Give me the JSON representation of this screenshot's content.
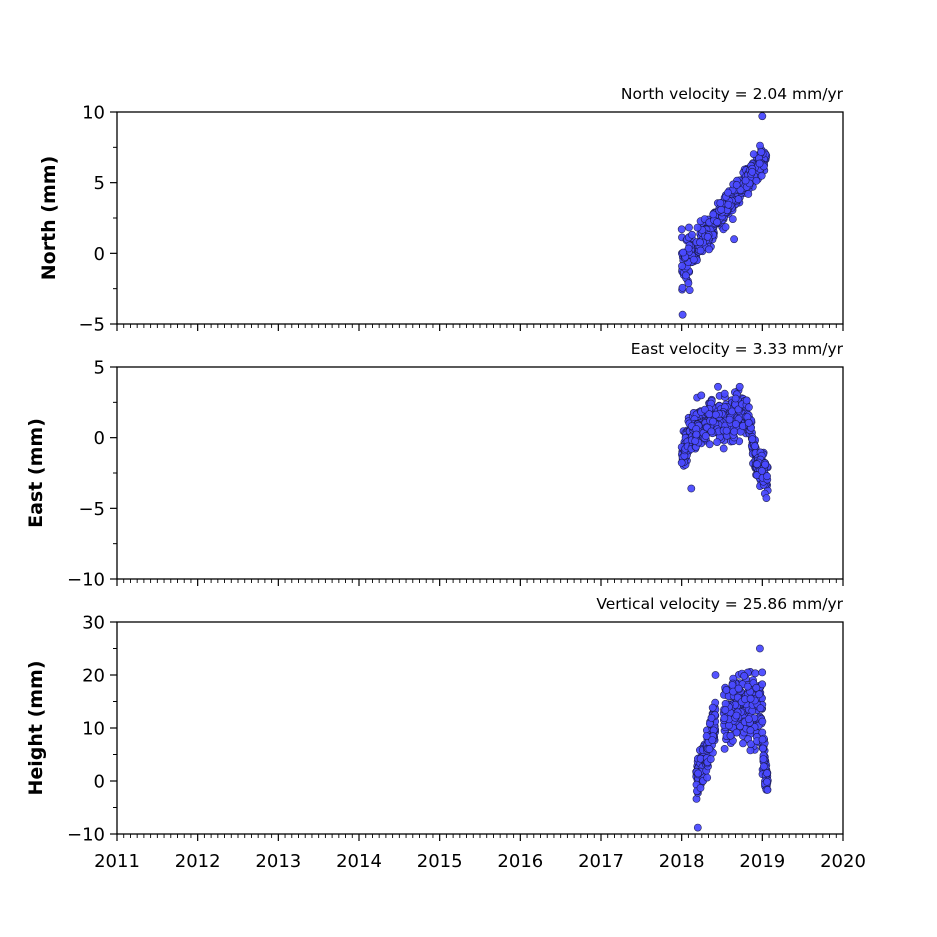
{
  "chart_data": [
    {
      "type": "scatter",
      "velocity_label": "North velocity = 2.04 mm/yr",
      "ylabel": "North (mm)",
      "ylim": [
        -5,
        10
      ],
      "yticks": [
        "−5",
        "0",
        "5",
        "10"
      ],
      "ytick_values": [
        -5,
        0,
        5,
        10
      ],
      "xlim": [
        2011,
        2020
      ],
      "marker_color": "#4a4aff",
      "trend": {
        "x_start": 2018.0,
        "x_end": 2019.05,
        "y_start": -1.0,
        "y_end": 7.0,
        "spread": 1.3,
        "start_spread": 1.6
      },
      "outliers": [
        {
          "x": 2019.0,
          "y": 9.7
        },
        {
          "x": 2018.1,
          "y": -2.6
        },
        {
          "x": 2018.65,
          "y": 1.0
        }
      ]
    },
    {
      "type": "scatter",
      "velocity_label": "East velocity = 3.33 mm/yr",
      "ylabel": "East (mm)",
      "ylim": [
        -10,
        5
      ],
      "yticks": [
        "−10",
        "−5",
        "0",
        "5"
      ],
      "ytick_values": [
        -10,
        -5,
        0,
        5
      ],
      "xlim": [
        2011,
        2020
      ],
      "marker_color": "#4a4aff",
      "segments": [
        {
          "x_start": 2018.0,
          "x_end": 2018.12,
          "y_start": -1.5,
          "y_end": 0.5,
          "spread": 1.2
        },
        {
          "x_start": 2018.12,
          "x_end": 2018.8,
          "y_start": 0.5,
          "y_end": 1.8,
          "spread": 1.3
        },
        {
          "x_start": 2018.8,
          "x_end": 2018.92,
          "y_start": 2.0,
          "y_end": -1.2,
          "spread": 1.0
        },
        {
          "x_start": 2018.92,
          "x_end": 2019.07,
          "y_start": -2.0,
          "y_end": -2.8,
          "spread": 1.1
        }
      ],
      "outliers": [
        {
          "x": 2018.12,
          "y": -3.6
        },
        {
          "x": 2018.72,
          "y": 3.6
        },
        {
          "x": 2018.45,
          "y": 3.6
        }
      ]
    },
    {
      "type": "scatter",
      "velocity_label": "Vertical velocity = 25.86 mm/yr",
      "ylabel": "Height (mm)",
      "ylim": [
        -10,
        30
      ],
      "yticks": [
        "−10",
        "0",
        "10",
        "20",
        "30"
      ],
      "ytick_values": [
        -10,
        0,
        10,
        20,
        30
      ],
      "xlim": [
        2011,
        2020
      ],
      "marker_color": "#4a4aff",
      "segments": [
        {
          "x_start": 2018.18,
          "x_end": 2018.3,
          "y_start": 0.0,
          "y_end": 4.0,
          "spread": 3.5
        },
        {
          "x_start": 2018.3,
          "x_end": 2018.42,
          "y_start": 4.0,
          "y_end": 12.0,
          "spread": 4.0
        },
        {
          "x_start": 2018.52,
          "x_end": 2019.0,
          "y_start": 13.0,
          "y_end": 14.0,
          "spread": 5.5
        },
        {
          "x_start": 2019.0,
          "x_end": 2019.07,
          "y_start": 8.0,
          "y_end": -2.0,
          "spread": 3.5
        }
      ],
      "outliers": [
        {
          "x": 2018.2,
          "y": -8.8
        },
        {
          "x": 2018.97,
          "y": 25.0
        },
        {
          "x": 2018.42,
          "y": 20.0
        }
      ]
    }
  ],
  "xticks": [
    "2011",
    "2012",
    "2013",
    "2014",
    "2015",
    "2016",
    "2017",
    "2018",
    "2019",
    "2020"
  ],
  "xtick_values": [
    2011,
    2012,
    2013,
    2014,
    2015,
    2016,
    2017,
    2018,
    2019,
    2020
  ]
}
